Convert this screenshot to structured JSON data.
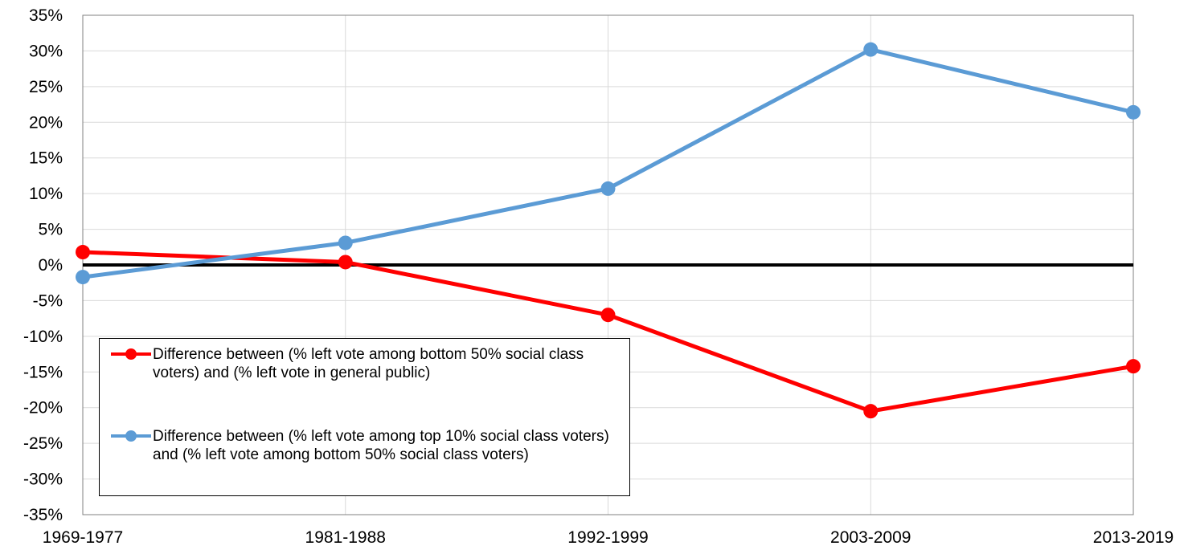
{
  "chart_data": {
    "type": "line",
    "categories": [
      "1969-1977",
      "1981-1988",
      "1992-1999",
      "2003-2009",
      "2013-2019"
    ],
    "ylim": [
      -35,
      35
    ],
    "ytick_step": 5,
    "ytick_labels": [
      "35%",
      "30%",
      "25%",
      "20%",
      "15%",
      "10%",
      "5%",
      "0%",
      "-5%",
      "-10%",
      "-15%",
      "-20%",
      "-25%",
      "-30%",
      "-35%"
    ],
    "grid": true,
    "zero_line": true,
    "legend_position": "bottom-left",
    "series": [
      {
        "name": "Difference between (% left vote among bottom 50% social class voters) and (% left vote in general public)",
        "color": "#ff0000",
        "values": [
          1.8,
          0.4,
          -7.0,
          -20.5,
          -14.2
        ]
      },
      {
        "name": "Difference between (% left vote among top 10% social class voters) and (% left vote among bottom 50% social class voters)",
        "color": "#5b9bd5",
        "values": [
          -1.7,
          3.1,
          10.7,
          30.2,
          21.4
        ]
      }
    ]
  }
}
